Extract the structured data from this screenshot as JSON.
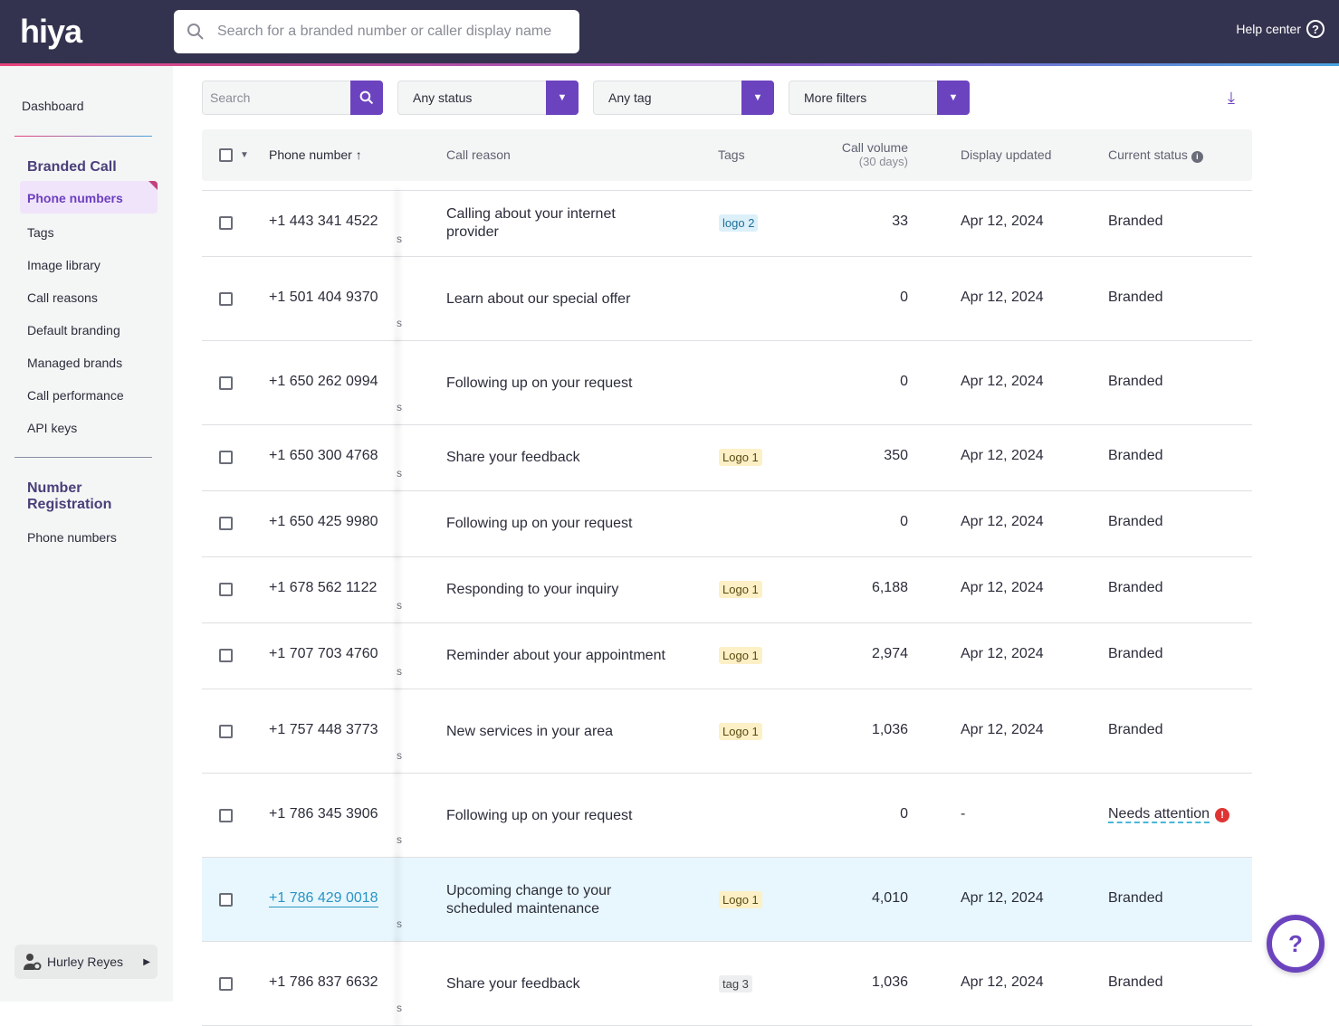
{
  "header": {
    "logo": "hiya",
    "search_placeholder": "Search for a branded number or caller display name",
    "help": "Help center"
  },
  "sidebar": {
    "dashboard": "Dashboard",
    "branded_call": "Branded Call",
    "active": "Phone numbers",
    "items": [
      "Tags",
      "Image library",
      "Call reasons",
      "Default branding",
      "Managed brands",
      "Call performance",
      "API keys"
    ],
    "number_registration": [
      "Number",
      "Registration"
    ],
    "nr_items": [
      "Phone numbers"
    ],
    "user": "Hurley Reyes"
  },
  "filters": {
    "search_placeholder": "Search",
    "status": "Any status",
    "tag": "Any tag",
    "more": "More filters"
  },
  "table": {
    "columns": {
      "phone": "Phone number",
      "reason": "Call reason",
      "tags": "Tags",
      "volume": "Call volume",
      "volume_sub": "(30 days)",
      "updated": "Display updated",
      "status": "Current status"
    },
    "rows": [
      {
        "phone": "+1 443 341 4522",
        "suffix": "s",
        "reason": [
          "Calling about your internet",
          "provider"
        ],
        "tag": "logo 2",
        "tag_style": "blue",
        "volume": "33",
        "updated": "Apr 12, 2024",
        "status": "Branded"
      },
      {
        "phone": "+1 501 404 9370",
        "suffix": "s",
        "reason": [
          "Learn about our special offer"
        ],
        "tag": "",
        "tag_style": "",
        "volume": "0",
        "updated": "Apr 12, 2024",
        "status": "Branded"
      },
      {
        "phone": "+1 650 262 0994",
        "suffix": "s",
        "reason": [
          "Following up on your request"
        ],
        "tag": "",
        "tag_style": "",
        "volume": "0",
        "updated": "Apr 12, 2024",
        "status": "Branded"
      },
      {
        "phone": "+1 650 300 4768",
        "suffix": "s",
        "reason": [
          "Share your feedback"
        ],
        "tag": "Logo 1",
        "tag_style": "yellow",
        "volume": "350",
        "updated": "Apr 12, 2024",
        "status": "Branded"
      },
      {
        "phone": "+1 650 425 9980",
        "suffix": "",
        "reason": [
          "Following up on your request"
        ],
        "tag": "",
        "tag_style": "",
        "volume": "0",
        "updated": "Apr 12, 2024",
        "status": "Branded"
      },
      {
        "phone": "+1 678 562 1122",
        "suffix": "s",
        "reason": [
          "Responding to your inquiry"
        ],
        "tag": "Logo 1",
        "tag_style": "yellow",
        "volume": "6,188",
        "updated": "Apr 12, 2024",
        "status": "Branded"
      },
      {
        "phone": "+1 707 703 4760",
        "suffix": "s",
        "reason": [
          "Reminder about your appointment"
        ],
        "tag": "Logo 1",
        "tag_style": "yellow",
        "volume": "2,974",
        "updated": "Apr 12, 2024",
        "status": "Branded"
      },
      {
        "phone": "+1 757 448 3773",
        "suffix": "s",
        "reason": [
          "New services in your area"
        ],
        "tag": "Logo 1",
        "tag_style": "yellow",
        "volume": "1,036",
        "updated": "Apr 12, 2024",
        "status": "Branded"
      },
      {
        "phone": "+1 786 345 3906",
        "suffix": "s",
        "reason": [
          "Following up on your request"
        ],
        "tag": "",
        "tag_style": "",
        "volume": "0",
        "updated": "-",
        "status": "Needs attention",
        "alert": true
      },
      {
        "phone": "+1 786 429 0018",
        "suffix": "s",
        "reason": [
          "Upcoming change to your",
          "scheduled maintenance"
        ],
        "tag": "Logo 1",
        "tag_style": "yellow",
        "volume": "4,010",
        "updated": "Apr 12, 2024",
        "status": "Branded",
        "highlighted": true
      },
      {
        "phone": "+1 786 837 6632",
        "suffix": "s",
        "reason": [
          "Share your feedback"
        ],
        "tag": "tag 3",
        "tag_style": "gray",
        "volume": "1,036",
        "updated": "Apr 12, 2024",
        "status": "Branded"
      }
    ]
  },
  "colors": {
    "accent": "#6c43bf",
    "nav": "#33334f",
    "link": "#2a94c4",
    "alert": "#e03434"
  }
}
